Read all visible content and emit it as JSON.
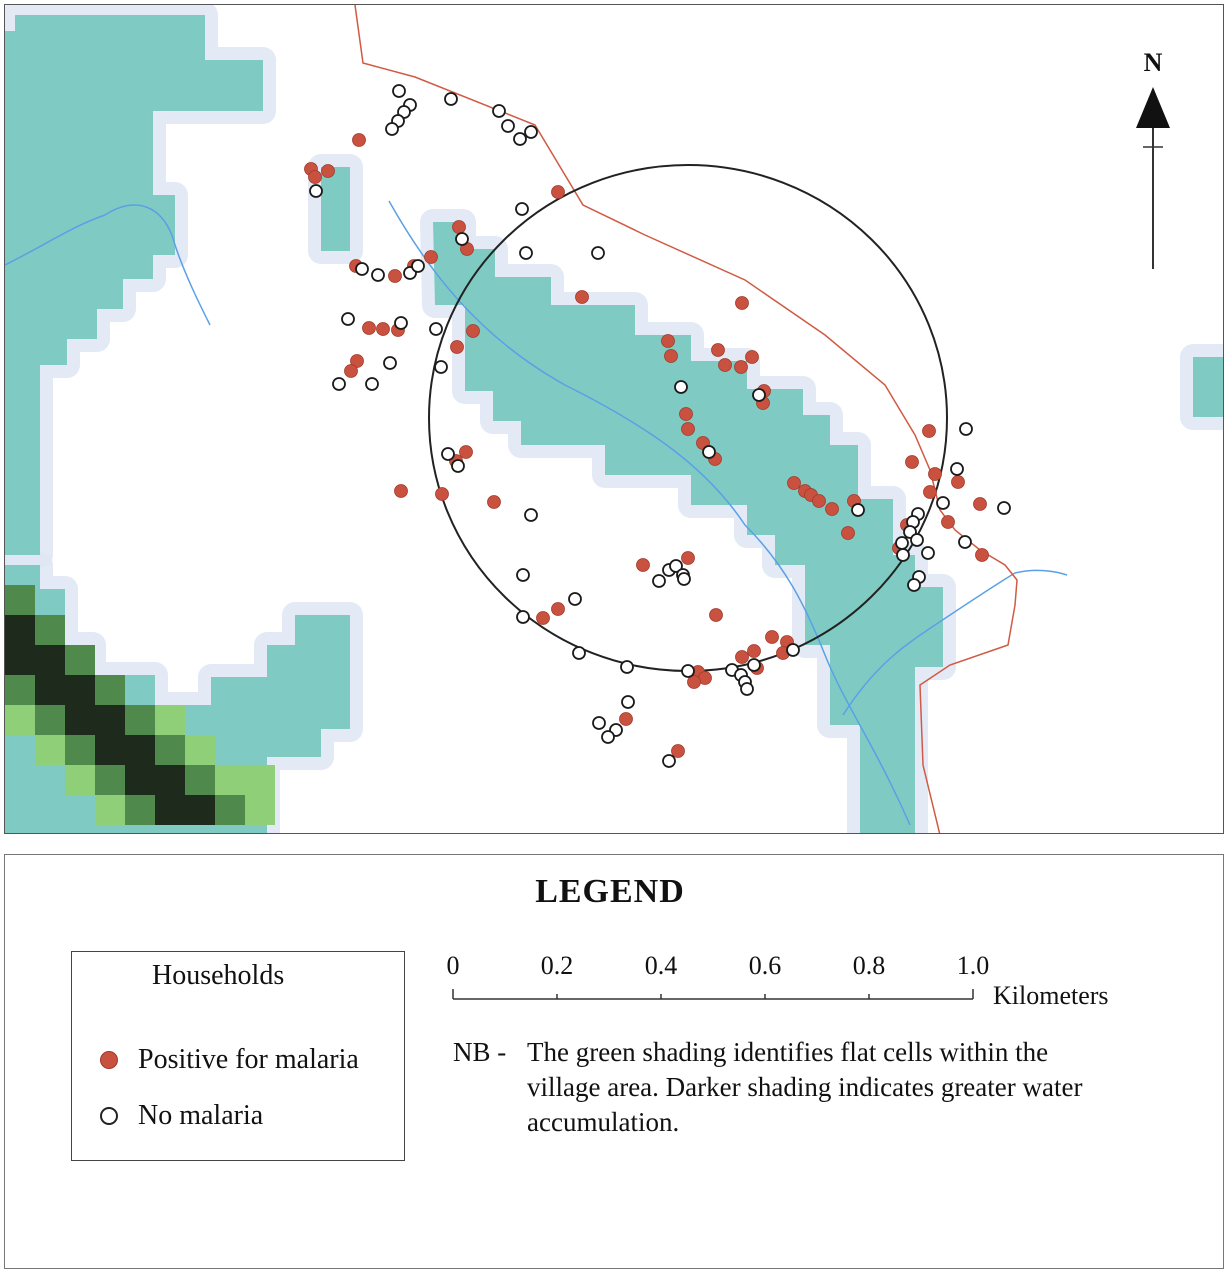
{
  "map": {
    "north_label": "N",
    "colors": {
      "flat_cell": "#7fcbc3",
      "halo": "#dfe7f4",
      "dark_green": "#1e2a1c",
      "mid_green": "#4f8a4c",
      "light_green": "#8fcf78",
      "river": "#5aa0e6",
      "road": "#d05a44",
      "positive": "#c9513f",
      "no_malaria": "#ffffff"
    }
  },
  "legend": {
    "title": "LEGEND",
    "households_title": "Households",
    "positive_label": "Positive for malaria",
    "negative_label": "No malaria",
    "scale_ticks": [
      "0",
      "0.2",
      "0.4",
      "0.6",
      "0.8",
      "1.0"
    ],
    "scale_unit": "Kilometers",
    "nb_prefix": "NB -",
    "nb_text": "The green shading identifies flat cells within the village area.  Darker shading indicates greater water accumulation."
  }
}
